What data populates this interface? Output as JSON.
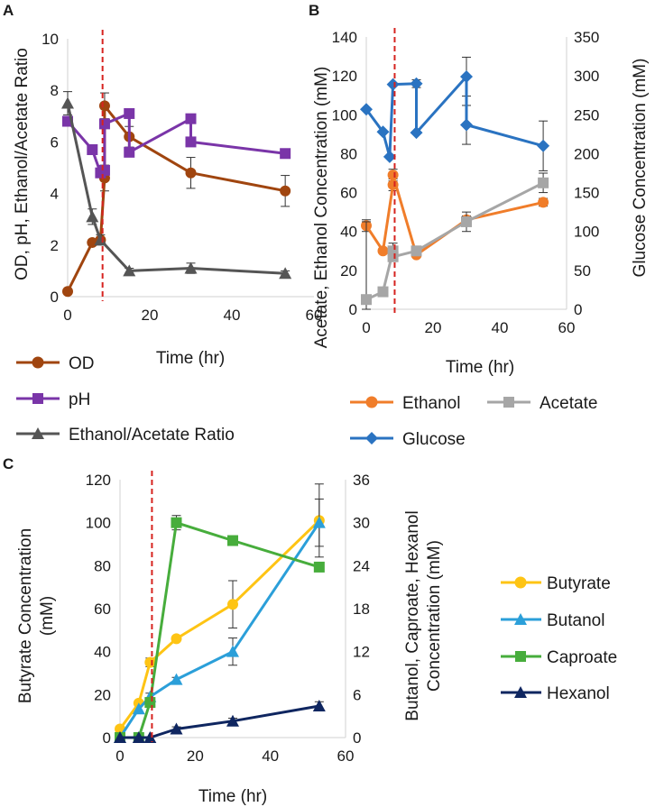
{
  "chart_data": [
    {
      "panel": "A",
      "type": "line",
      "xlabel": "Time (hr)",
      "ylabel": "OD, pH, Ethanol/Acetate Ratio",
      "xlim": [
        0,
        60
      ],
      "ylim": [
        0,
        10
      ],
      "x_ticks": [
        "0",
        "20",
        "40",
        "60"
      ],
      "y_ticks": [
        "0",
        "2",
        "4",
        "6",
        "8",
        "10"
      ],
      "series": [
        {
          "name": "OD",
          "color": "#a0450f",
          "marker": "circle",
          "points": [
            [
              0,
              0.2
            ],
            [
              6,
              2.1
            ],
            [
              8,
              2.2
            ],
            [
              9,
              4.6
            ],
            [
              9,
              7.4
            ],
            [
              15,
              6.2
            ],
            [
              30,
              4.8
            ],
            [
              53,
              4.1
            ]
          ],
          "errors": [
            0,
            0,
            0,
            0.5,
            0.5,
            0.4,
            0.6,
            0.6
          ]
        },
        {
          "name": "pH",
          "color": "#7a35a8",
          "marker": "square",
          "points": [
            [
              0,
              6.8
            ],
            [
              6,
              5.7
            ],
            [
              8,
              4.8
            ],
            [
              9,
              4.9
            ],
            [
              9,
              6.7
            ],
            [
              15,
              7.1
            ],
            [
              15,
              5.6
            ],
            [
              30,
              6.9
            ],
            [
              30,
              6.0
            ],
            [
              53,
              5.55
            ]
          ],
          "errors": [
            0,
            0,
            0,
            0,
            0,
            0,
            0,
            0,
            0,
            0
          ]
        },
        {
          "name": "Ethanol/Acetate Ratio",
          "color": "#555555",
          "marker": "triangle",
          "points": [
            [
              0,
              7.5
            ],
            [
              6,
              3.1
            ],
            [
              8,
              2.2
            ],
            [
              15,
              1.0
            ],
            [
              30,
              1.1
            ],
            [
              53,
              0.9
            ]
          ],
          "errors": [
            0.45,
            0.3,
            0.2,
            0.1,
            0.2,
            0.1
          ]
        }
      ],
      "vline_x": 8.5
    },
    {
      "panel": "B",
      "type": "line",
      "xlabel": "Time (hr)",
      "ylabel": "Acetate, Ethanol Concentration (mM)",
      "y2label": "Glucose Concentration (mM)",
      "xlim": [
        0,
        60
      ],
      "ylim": [
        0,
        140
      ],
      "y2lim": [
        0,
        350
      ],
      "x_ticks": [
        "0",
        "20",
        "40",
        "60"
      ],
      "y_ticks": [
        "0",
        "20",
        "40",
        "60",
        "80",
        "100",
        "120",
        "140"
      ],
      "y2_ticks": [
        "0",
        "50",
        "100",
        "150",
        "200",
        "250",
        "300",
        "350"
      ],
      "series": [
        {
          "name": "Ethanol",
          "color": "#f07d2a",
          "marker": "circle",
          "axis": "left",
          "points": [
            [
              0,
              43
            ],
            [
              5,
              30
            ],
            [
              8,
              64
            ],
            [
              8,
              69
            ],
            [
              15,
              28
            ],
            [
              30,
              46
            ],
            [
              53,
              55
            ]
          ],
          "errors": [
            3,
            0,
            3,
            3,
            1,
            2,
            2
          ]
        },
        {
          "name": "Acetate",
          "color": "#a6a6a6",
          "marker": "square",
          "axis": "left",
          "points": [
            [
              0,
              5
            ],
            [
              5,
              9
            ],
            [
              8,
              30
            ],
            [
              8,
              27
            ],
            [
              15,
              30
            ],
            [
              30,
              45
            ],
            [
              53,
              65
            ]
          ],
          "errors": [
            40,
            0,
            4,
            0,
            2,
            5,
            5
          ]
        },
        {
          "name": "Glucose",
          "color": "#2a73c1",
          "marker": "diamond",
          "axis": "right",
          "points": [
            [
              0,
              257
            ],
            [
              5,
              228
            ],
            [
              7,
              196
            ],
            [
              8,
              289
            ],
            [
              15,
              290
            ],
            [
              15,
              227
            ],
            [
              30,
              299
            ],
            [
              30,
              237
            ],
            [
              53,
              210
            ]
          ],
          "errors": [
            0,
            0,
            0,
            0,
            5,
            0,
            25,
            25,
            32
          ]
        }
      ],
      "vline_x": 8.5
    },
    {
      "panel": "C",
      "type": "line",
      "xlabel": "Time (hr)",
      "ylabel": "Butyrate Concentration (mM)",
      "y2label": "Butanol, Caproate, Hexanol Concentration (mM)",
      "xlim": [
        0,
        60
      ],
      "ylim": [
        0,
        120
      ],
      "y2lim": [
        0,
        36
      ],
      "x_ticks": [
        "0",
        "20",
        "40",
        "60"
      ],
      "y_ticks": [
        "0",
        "20",
        "40",
        "60",
        "80",
        "100",
        "120"
      ],
      "y2_ticks": [
        "0",
        "6",
        "12",
        "18",
        "24",
        "30",
        "36"
      ],
      "series": [
        {
          "name": "Butyrate",
          "color": "#fec414",
          "marker": "circle",
          "axis": "left",
          "points": [
            [
              0,
              4
            ],
            [
              5,
              16
            ],
            [
              8,
              35
            ],
            [
              15,
              46
            ],
            [
              30,
              62
            ],
            [
              53,
              101
            ]
          ],
          "errors": [
            0,
            0,
            2,
            0,
            11,
            17
          ]
        },
        {
          "name": "Butanol",
          "color": "#2b9fd9",
          "marker": "triangle",
          "axis": "right",
          "points": [
            [
              0,
              0
            ],
            [
              5,
              4.0
            ],
            [
              8,
              5.7
            ],
            [
              15,
              8.1
            ],
            [
              30,
              12.0
            ],
            [
              53,
              30.0
            ]
          ],
          "errors": [
            0,
            0,
            0.5,
            0.3,
            1.9,
            3.3
          ]
        },
        {
          "name": "Caproate",
          "color": "#47ad3c",
          "marker": "square",
          "axis": "right",
          "points": [
            [
              0,
              0
            ],
            [
              5,
              0
            ],
            [
              8,
              4.9
            ],
            [
              15,
              30.0
            ],
            [
              30,
              27.5
            ],
            [
              53,
              23.8
            ]
          ],
          "errors": [
            0,
            0,
            0.3,
            1.0,
            0,
            0
          ]
        },
        {
          "name": "Hexanol",
          "color": "#0f2660",
          "marker": "triangle",
          "axis": "right",
          "points": [
            [
              0,
              0
            ],
            [
              5,
              0
            ],
            [
              8,
              0
            ],
            [
              15,
              1.2
            ],
            [
              30,
              2.3
            ],
            [
              53,
              4.4
            ]
          ],
          "errors": [
            0,
            0,
            0,
            0.3,
            0.4,
            0.6
          ]
        }
      ],
      "vline_x": 8.5
    }
  ]
}
